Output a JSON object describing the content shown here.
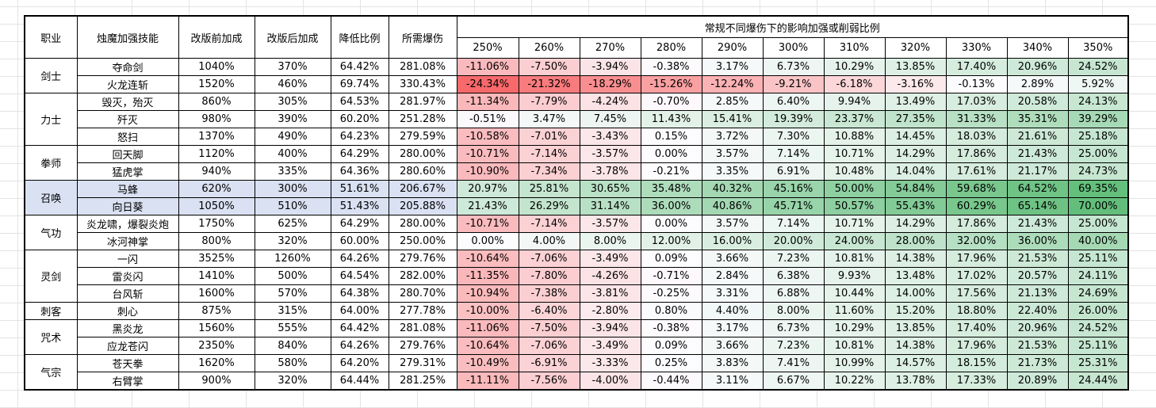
{
  "headers": {
    "class": "职业",
    "skill": "烛魔加强技能",
    "before": "改版前加成",
    "after": "改版后加成",
    "reduction": "降低比例",
    "crit_needed": "所需爆伤",
    "group_title": "常规不同爆伤下的影响加强或削弱比例",
    "crit_levels": [
      "250%",
      "260%",
      "270%",
      "280%",
      "290%",
      "300%",
      "310%",
      "320%",
      "330%",
      "340%",
      "350%"
    ]
  },
  "classes": [
    {
      "name": "剑士",
      "rows": [
        {
          "skill": "夺命剑",
          "before": "1040%",
          "after": "370%",
          "reduction": "64.42%",
          "crit": "281.08%",
          "values": [
            "-11.06%",
            "-7.50%",
            "-3.94%",
            "-0.38%",
            "3.17%",
            "6.73%",
            "10.29%",
            "13.85%",
            "17.40%",
            "20.96%",
            "24.52%"
          ]
        },
        {
          "skill": "火龙连斩",
          "before": "1520%",
          "after": "460%",
          "reduction": "69.74%",
          "crit": "330.43%",
          "values": [
            "-24.34%",
            "-21.32%",
            "-18.29%",
            "-15.26%",
            "-12.24%",
            "-9.21%",
            "-6.18%",
            "-3.16%",
            "-0.13%",
            "2.89%",
            "5.92%"
          ]
        }
      ]
    },
    {
      "name": "力士",
      "rows": [
        {
          "skill": "毁灭，殆灭",
          "before": "860%",
          "after": "305%",
          "reduction": "64.53%",
          "crit": "281.97%",
          "values": [
            "-11.34%",
            "-7.79%",
            "-4.24%",
            "-0.70%",
            "2.85%",
            "6.40%",
            "9.94%",
            "13.49%",
            "17.03%",
            "20.58%",
            "24.13%"
          ]
        },
        {
          "skill": "歼灭",
          "before": "980%",
          "after": "390%",
          "reduction": "60.20%",
          "crit": "251.28%",
          "values": [
            "-0.51%",
            "3.47%",
            "7.45%",
            "11.43%",
            "15.41%",
            "19.39%",
            "23.37%",
            "27.35%",
            "31.33%",
            "35.31%",
            "39.29%"
          ]
        },
        {
          "skill": "怒扫",
          "before": "1370%",
          "after": "490%",
          "reduction": "64.23%",
          "crit": "279.59%",
          "values": [
            "-10.58%",
            "-7.01%",
            "-3.43%",
            "0.15%",
            "3.72%",
            "7.30%",
            "10.88%",
            "14.45%",
            "18.03%",
            "21.61%",
            "25.18%"
          ]
        }
      ]
    },
    {
      "name": "拳师",
      "rows": [
        {
          "skill": "回天脚",
          "before": "1120%",
          "after": "400%",
          "reduction": "64.29%",
          "crit": "280.00%",
          "values": [
            "-10.71%",
            "-7.14%",
            "-3.57%",
            "0.00%",
            "3.57%",
            "7.14%",
            "10.71%",
            "14.29%",
            "17.86%",
            "21.43%",
            "25.00%"
          ]
        },
        {
          "skill": "猛虎掌",
          "before": "940%",
          "after": "335%",
          "reduction": "64.36%",
          "crit": "280.60%",
          "values": [
            "-10.90%",
            "-7.34%",
            "-3.78%",
            "-0.21%",
            "3.35%",
            "6.91%",
            "10.48%",
            "14.04%",
            "17.61%",
            "21.17%",
            "24.73%"
          ]
        }
      ]
    },
    {
      "name": "召唤",
      "summon": true,
      "rows": [
        {
          "skill": "马蜂",
          "before": "620%",
          "after": "300%",
          "reduction": "51.61%",
          "crit": "206.67%",
          "values": [
            "20.97%",
            "25.81%",
            "30.65%",
            "35.48%",
            "40.32%",
            "45.16%",
            "50.00%",
            "54.84%",
            "59.68%",
            "64.52%",
            "69.35%"
          ]
        },
        {
          "skill": "向日葵",
          "before": "1050%",
          "after": "510%",
          "reduction": "51.43%",
          "crit": "205.88%",
          "values": [
            "21.43%",
            "26.29%",
            "31.14%",
            "36.00%",
            "40.86%",
            "45.71%",
            "50.57%",
            "55.43%",
            "60.29%",
            "65.14%",
            "70.00%"
          ]
        }
      ]
    },
    {
      "name": "气功",
      "rows": [
        {
          "skill": "炎龙啸，爆裂炎炮",
          "before": "1750%",
          "after": "625%",
          "reduction": "64.29%",
          "crit": "280.00%",
          "values": [
            "-10.71%",
            "-7.14%",
            "-3.57%",
            "0.00%",
            "3.57%",
            "7.14%",
            "10.71%",
            "14.29%",
            "17.86%",
            "21.43%",
            "25.00%"
          ]
        },
        {
          "skill": "冰河神掌",
          "before": "800%",
          "after": "320%",
          "reduction": "60.00%",
          "crit": "250.00%",
          "values": [
            "0.00%",
            "4.00%",
            "8.00%",
            "12.00%",
            "16.00%",
            "20.00%",
            "24.00%",
            "28.00%",
            "32.00%",
            "36.00%",
            "40.00%"
          ]
        }
      ]
    },
    {
      "name": "灵剑",
      "rows": [
        {
          "skill": "一闪",
          "before": "3525%",
          "after": "1260%",
          "reduction": "64.26%",
          "crit": "279.76%",
          "values": [
            "-10.64%",
            "-7.06%",
            "-3.49%",
            "0.09%",
            "3.66%",
            "7.23%",
            "10.81%",
            "14.38%",
            "17.96%",
            "21.53%",
            "25.11%"
          ]
        },
        {
          "skill": "雷炎闪",
          "before": "1410%",
          "after": "500%",
          "reduction": "64.54%",
          "crit": "282.00%",
          "values": [
            "-11.35%",
            "-7.80%",
            "-4.26%",
            "-0.71%",
            "2.84%",
            "6.38%",
            "9.93%",
            "13.48%",
            "17.02%",
            "20.57%",
            "24.11%"
          ]
        },
        {
          "skill": "台风斩",
          "before": "1600%",
          "after": "570%",
          "reduction": "64.38%",
          "crit": "280.70%",
          "values": [
            "-10.94%",
            "-7.38%",
            "-3.81%",
            "-0.25%",
            "3.31%",
            "6.88%",
            "10.44%",
            "14.00%",
            "17.56%",
            "21.13%",
            "24.69%"
          ]
        }
      ]
    },
    {
      "name": "刺客",
      "rows": [
        {
          "skill": "刺心",
          "before": "875%",
          "after": "315%",
          "reduction": "64.00%",
          "crit": "277.78%",
          "values": [
            "-10.00%",
            "-6.40%",
            "-2.80%",
            "0.80%",
            "4.40%",
            "8.00%",
            "11.60%",
            "15.20%",
            "18.80%",
            "22.40%",
            "26.00%"
          ]
        }
      ]
    },
    {
      "name": "咒术",
      "rows": [
        {
          "skill": "黑炎龙",
          "before": "1560%",
          "after": "555%",
          "reduction": "64.42%",
          "crit": "281.08%",
          "values": [
            "-11.06%",
            "-7.50%",
            "-3.94%",
            "-0.38%",
            "3.17%",
            "6.73%",
            "10.29%",
            "13.85%",
            "17.40%",
            "20.96%",
            "24.52%"
          ]
        },
        {
          "skill": "应龙苍闪",
          "before": "2350%",
          "after": "840%",
          "reduction": "64.26%",
          "crit": "279.76%",
          "values": [
            "-10.64%",
            "-7.06%",
            "-3.49%",
            "0.09%",
            "3.66%",
            "7.23%",
            "10.81%",
            "14.38%",
            "17.96%",
            "21.53%",
            "25.11%"
          ]
        }
      ]
    },
    {
      "name": "气宗",
      "rows": [
        {
          "skill": "苍天拳",
          "before": "1620%",
          "after": "580%",
          "reduction": "64.20%",
          "crit": "279.31%",
          "values": [
            "-10.49%",
            "-6.91%",
            "-3.33%",
            "0.25%",
            "3.83%",
            "7.41%",
            "10.99%",
            "14.57%",
            "18.15%",
            "21.73%",
            "25.31%"
          ]
        },
        {
          "skill": "右臂掌",
          "before": "900%",
          "after": "320%",
          "reduction": "64.44%",
          "crit": "281.25%",
          "values": [
            "-11.11%",
            "-7.56%",
            "-4.00%",
            "-0.44%",
            "3.11%",
            "6.67%",
            "10.22%",
            "13.78%",
            "17.33%",
            "20.89%",
            "24.44%"
          ]
        }
      ]
    }
  ],
  "colors": {
    "negative_max": "#f8696b",
    "zero": "#fcfcff",
    "positive_max": "#63be7b",
    "summon_fill": "#d9e1f2",
    "group_title_text": "#1f6fb5"
  }
}
